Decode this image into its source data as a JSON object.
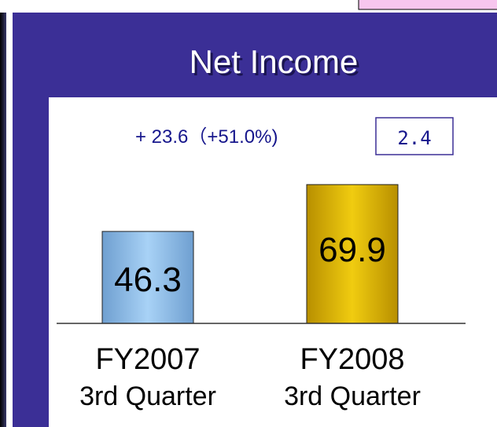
{
  "chart_data": {
    "type": "bar",
    "title": "Net Income",
    "annotation": "+ 23.6（+51.0%)",
    "annotation_box": "2.4",
    "categories": [
      [
        "FY2007",
        "3rd Quarter"
      ],
      [
        "FY2008",
        "3rd Quarter"
      ]
    ],
    "values": [
      46.3,
      69.9
    ],
    "colors": [
      "#8fbfeb",
      "#e0b800"
    ]
  }
}
